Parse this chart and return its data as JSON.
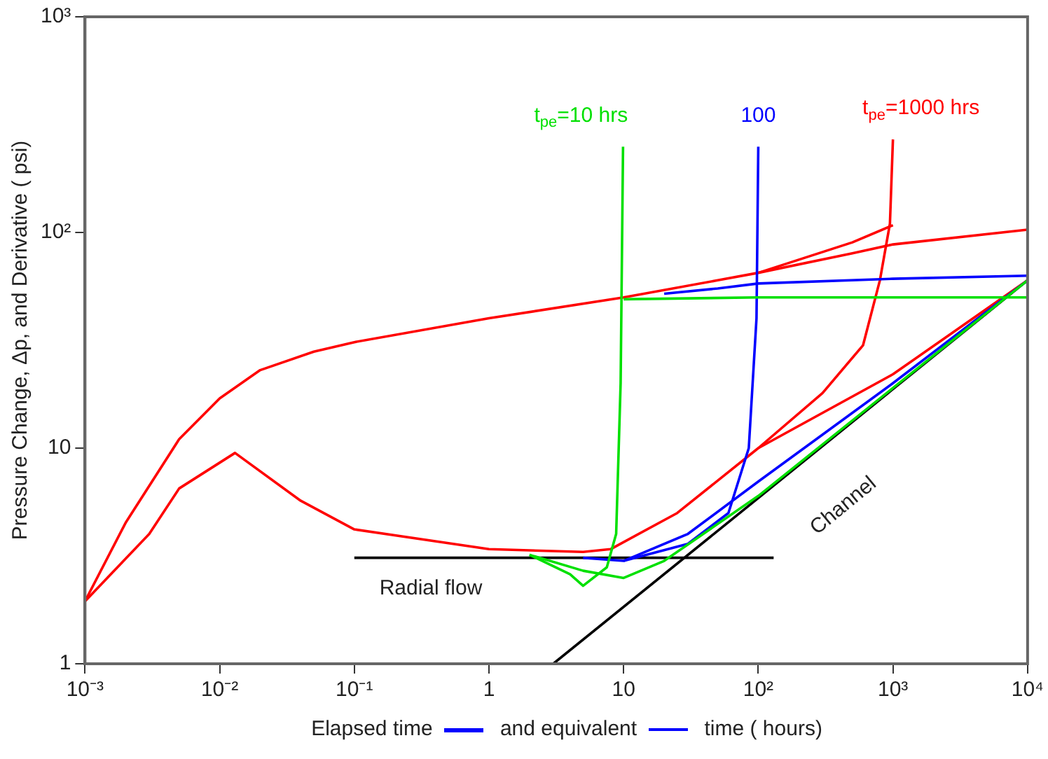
{
  "chart_data": {
    "type": "line",
    "xlabel": "Elapsed time and equivalent time ( hours)",
    "ylabel": "Pressure Change, Δp, and Derivative ( psi)",
    "log": "xy",
    "grid": false,
    "legend": false,
    "marker": "none",
    "line_style": "solid",
    "xlim": [
      0.001,
      10000
    ],
    "xticks": [
      {
        "value": 0.001,
        "label": "10⁻³"
      },
      {
        "value": 0.01,
        "label": "10⁻²"
      },
      {
        "value": 0.1,
        "label": "10⁻¹"
      },
      1,
      10,
      {
        "value": 100,
        "label": "10²"
      },
      {
        "value": 1000,
        "label": "10³"
      },
      {
        "value": 10000,
        "label": "10⁴"
      }
    ],
    "ylim": [
      1,
      1000
    ],
    "yticks": [
      1,
      10,
      {
        "value": 100,
        "label": "10²"
      },
      {
        "value": 1000,
        "label": "10³"
      }
    ],
    "series": [
      {
        "color": "#00e000",
        "x": [
          10,
          100,
          1000,
          10000
        ],
        "values": [
          49,
          50,
          50,
          50
        ]
      },
      {
        "color": "#00e000",
        "x": [
          2,
          4,
          5,
          7.5,
          8.8,
          9.5,
          9.9
        ],
        "values": [
          3.2,
          2.6,
          2.3,
          2.8,
          4,
          20,
          250
        ]
      },
      {
        "color": "#00e000",
        "x": [
          2,
          5,
          10,
          20,
          100,
          1000,
          10000
        ],
        "values": [
          3.2,
          2.7,
          2.5,
          3,
          6,
          19,
          60
        ]
      },
      {
        "color": "#0000ff",
        "x": [
          20,
          50,
          100,
          1000,
          10000
        ],
        "values": [
          52,
          55,
          58,
          61,
          63
        ]
      },
      {
        "color": "#0000ff",
        "x": [
          5,
          10,
          30,
          60,
          85,
          97,
          100
        ],
        "values": [
          3.1,
          3,
          3.6,
          5,
          10,
          40,
          250
        ]
      },
      {
        "color": "#0000ff",
        "x": [
          10,
          30,
          100,
          1000,
          10000
        ],
        "values": [
          3,
          4,
          7,
          20,
          60
        ]
      },
      {
        "color": "#ff0000",
        "x": [
          0.001,
          0.002,
          0.005,
          0.01,
          0.02,
          0.05,
          0.1,
          1,
          10,
          50,
          100,
          500,
          1000,
          10000
        ],
        "values": [
          1.95,
          4.5,
          11,
          17,
          23,
          28,
          31,
          40,
          50,
          60,
          65,
          80,
          88,
          103
        ]
      },
      {
        "color": "#ff0000",
        "x": [
          100,
          500,
          1000
        ],
        "values": [
          65,
          90,
          108
        ]
      },
      {
        "color": "#ff0000",
        "x": [
          0.001,
          0.003,
          0.005,
          0.013,
          0.04,
          0.1,
          1,
          5,
          8,
          25,
          100,
          300,
          600,
          800,
          950,
          1000
        ],
        "values": [
          1.95,
          4,
          6.5,
          9.5,
          5.7,
          4.2,
          3.4,
          3.3,
          3.4,
          5,
          10,
          18,
          30,
          60,
          110,
          270
        ]
      },
      {
        "color": "#ff0000",
        "x": [
          100,
          1000,
          10000
        ],
        "values": [
          10,
          22,
          60
        ]
      },
      {
        "color": "#000000",
        "x": [
          0.1,
          130
        ],
        "values": [
          3.1,
          3.1
        ]
      },
      {
        "color": "#000000",
        "x": [
          3,
          10000
        ],
        "values": [
          1,
          60
        ]
      }
    ],
    "annotations": [
      {
        "text": "t$_{pe}$=10 hrs",
        "x": 9.9,
        "y": 250
      },
      {
        "text": "100",
        "x": 100,
        "y": 250
      },
      {
        "text": "t$_{pe}$=1000 hrs",
        "x": 1000,
        "y": 270
      },
      {
        "text": "Radial flow",
        "x": 0.37,
        "y": 3.1
      },
      {
        "text": "Channel",
        "x": 225,
        "y": 8.83
      }
    ]
  }
}
